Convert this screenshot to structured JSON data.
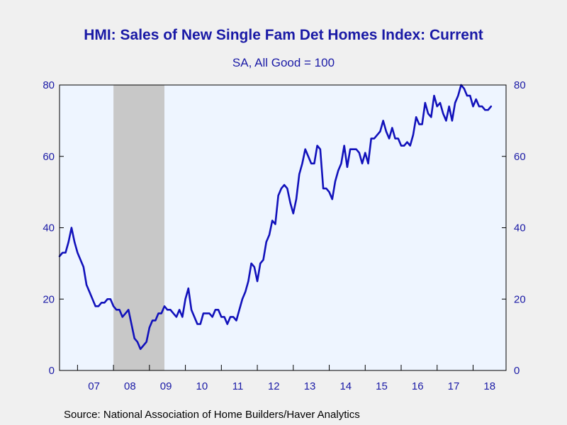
{
  "colors": {
    "background": "#f0f0f0",
    "plot_background": "#eef5ff",
    "line": "#1111bb",
    "text": "#1a1aa6",
    "recession": "#c8c8c8"
  },
  "chart_data": {
    "type": "line",
    "title": "HMI: Sales of New Single Fam Det Homes Index: Current",
    "subtitle": "SA, All Good = 100",
    "source": "Source:  National Association of Home Builders/Haver Analytics",
    "ylim": [
      0,
      80
    ],
    "y_ticks": [
      0,
      20,
      40,
      60,
      80
    ],
    "y_ticks_right": [
      0,
      20,
      40,
      60,
      80
    ],
    "x_ticks": [
      "07",
      "08",
      "09",
      "10",
      "11",
      "12",
      "13",
      "14",
      "15",
      "16",
      "17",
      "18"
    ],
    "x_range": [
      "2006-07",
      "2018-12"
    ],
    "grid": false,
    "recession_shading": {
      "start": "2008-01",
      "end": "2009-06"
    },
    "series": [
      {
        "start": "2006-07",
        "frequency": "monthly",
        "values": [
          32,
          33,
          33,
          36,
          40,
          36,
          33,
          31,
          29,
          24,
          22,
          20,
          18,
          18,
          19,
          19,
          20,
          20,
          18,
          17,
          17,
          15,
          16,
          17,
          13,
          9,
          8,
          6,
          7,
          8,
          12,
          14,
          14,
          16,
          16,
          18,
          17,
          17,
          16,
          15,
          17,
          15,
          20,
          23,
          17,
          15,
          13,
          13,
          16,
          16,
          16,
          15,
          17,
          17,
          15,
          15,
          13,
          15,
          15,
          14,
          17,
          20,
          22,
          25,
          30,
          29,
          25,
          30,
          31,
          36,
          38,
          42,
          41,
          49,
          51,
          52,
          51,
          47,
          44,
          48,
          55,
          58,
          62,
          60,
          58,
          58,
          63,
          62,
          51,
          51,
          50,
          48,
          53,
          56,
          58,
          63,
          57,
          62,
          62,
          62,
          61,
          58,
          61,
          58,
          65,
          65,
          66,
          67,
          70,
          67,
          65,
          68,
          65,
          65,
          63,
          63,
          64,
          63,
          66,
          71,
          69,
          69,
          75,
          72,
          71,
          77,
          74,
          75,
          72,
          70,
          74,
          70,
          75,
          77,
          80,
          79,
          77,
          77,
          74,
          76,
          74,
          74,
          73,
          73,
          74
        ]
      }
    ]
  }
}
